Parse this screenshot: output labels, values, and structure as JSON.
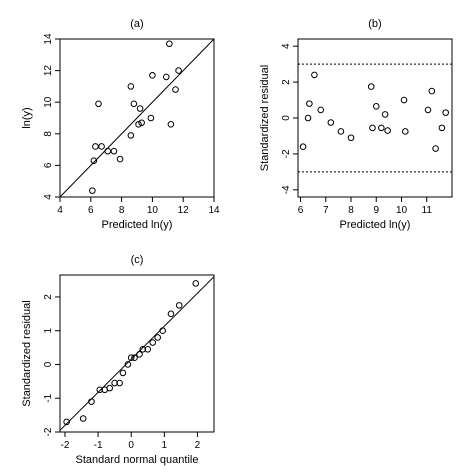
{
  "chart_data": [
    {
      "panel": "(a)",
      "type": "scatter",
      "title": "(a)",
      "xlabel": "Predicted ln(y)",
      "ylabel": "ln(y)",
      "xlim": [
        4,
        14
      ],
      "ylim": [
        4,
        14
      ],
      "xticks": [
        4,
        6,
        8,
        10,
        12,
        14
      ],
      "yticks": [
        4,
        6,
        8,
        10,
        12,
        14
      ],
      "reference_line": {
        "type": "identity",
        "from": [
          4,
          4
        ],
        "to": [
          14,
          14
        ]
      },
      "points": [
        {
          "x": 6.1,
          "y": 4.4
        },
        {
          "x": 6.2,
          "y": 6.3
        },
        {
          "x": 6.3,
          "y": 7.2
        },
        {
          "x": 6.5,
          "y": 9.9
        },
        {
          "x": 6.7,
          "y": 7.2
        },
        {
          "x": 7.1,
          "y": 6.9
        },
        {
          "x": 7.5,
          "y": 6.9
        },
        {
          "x": 7.9,
          "y": 6.4
        },
        {
          "x": 8.6,
          "y": 7.9
        },
        {
          "x": 8.6,
          "y": 11.0
        },
        {
          "x": 8.8,
          "y": 9.9
        },
        {
          "x": 9.1,
          "y": 8.6
        },
        {
          "x": 9.2,
          "y": 9.6
        },
        {
          "x": 9.3,
          "y": 8.7
        },
        {
          "x": 9.9,
          "y": 9.0
        },
        {
          "x": 10.0,
          "y": 11.7
        },
        {
          "x": 10.9,
          "y": 11.6
        },
        {
          "x": 11.1,
          "y": 13.7
        },
        {
          "x": 11.2,
          "y": 8.6
        },
        {
          "x": 11.5,
          "y": 10.8
        },
        {
          "x": 11.7,
          "y": 12.0
        }
      ]
    },
    {
      "panel": "(b)",
      "type": "scatter",
      "title": "(b)",
      "xlabel": "Predicted ln(y)",
      "ylabel": "Standardized residual",
      "xlim": [
        5.9,
        12.0
      ],
      "ylim": [
        -4.4,
        4.4
      ],
      "xticks": [
        6,
        7,
        8,
        9,
        10,
        11
      ],
      "yticks": [
        -4,
        -2,
        0,
        2,
        4
      ],
      "reference_lines": [
        {
          "y": 3,
          "style": "dotted"
        },
        {
          "y": -3,
          "style": "dotted"
        }
      ],
      "points": [
        {
          "x": 6.1,
          "y": -1.6
        },
        {
          "x": 6.3,
          "y": 0.0
        },
        {
          "x": 6.35,
          "y": 0.8
        },
        {
          "x": 6.55,
          "y": 2.4
        },
        {
          "x": 6.8,
          "y": 0.45
        },
        {
          "x": 7.2,
          "y": -0.25
        },
        {
          "x": 7.6,
          "y": -0.75
        },
        {
          "x": 8.0,
          "y": -1.1
        },
        {
          "x": 8.8,
          "y": 1.75
        },
        {
          "x": 8.85,
          "y": -0.55
        },
        {
          "x": 9.0,
          "y": 0.65
        },
        {
          "x": 9.2,
          "y": -0.55
        },
        {
          "x": 9.35,
          "y": 0.2
        },
        {
          "x": 9.45,
          "y": -0.7
        },
        {
          "x": 10.1,
          "y": 1.0
        },
        {
          "x": 10.15,
          "y": -0.75
        },
        {
          "x": 11.05,
          "y": 0.45
        },
        {
          "x": 11.2,
          "y": 1.5
        },
        {
          "x": 11.35,
          "y": -1.7
        },
        {
          "x": 11.6,
          "y": -0.55
        },
        {
          "x": 11.75,
          "y": 0.3
        }
      ]
    },
    {
      "panel": "(c)",
      "type": "scatter",
      "title": "(c)",
      "xlabel": "Standard normal quantile",
      "ylabel": "Standardized residual",
      "xlim": [
        -2.15,
        2.5
      ],
      "ylim": [
        -2.0,
        2.65
      ],
      "xticks": [
        -2,
        -1,
        0,
        1,
        2
      ],
      "yticks": [
        -2,
        -1,
        0,
        1,
        2
      ],
      "reference_line": {
        "type": "qq",
        "from": [
          -2.15,
          -1.95
        ],
        "to": [
          2.5,
          2.6
        ]
      },
      "points": [
        {
          "x": -1.95,
          "y": -1.7
        },
        {
          "x": -1.45,
          "y": -1.6
        },
        {
          "x": -1.2,
          "y": -1.1
        },
        {
          "x": -0.95,
          "y": -0.75
        },
        {
          "x": -0.8,
          "y": -0.75
        },
        {
          "x": -0.65,
          "y": -0.7
        },
        {
          "x": -0.5,
          "y": -0.55
        },
        {
          "x": -0.35,
          "y": -0.55
        },
        {
          "x": -0.25,
          "y": -0.25
        },
        {
          "x": -0.1,
          "y": 0.0
        },
        {
          "x": 0.0,
          "y": 0.2
        },
        {
          "x": 0.1,
          "y": 0.2
        },
        {
          "x": 0.25,
          "y": 0.3
        },
        {
          "x": 0.35,
          "y": 0.45
        },
        {
          "x": 0.5,
          "y": 0.45
        },
        {
          "x": 0.65,
          "y": 0.65
        },
        {
          "x": 0.8,
          "y": 0.8
        },
        {
          "x": 0.95,
          "y": 1.0
        },
        {
          "x": 1.2,
          "y": 1.5
        },
        {
          "x": 1.45,
          "y": 1.75
        },
        {
          "x": 1.95,
          "y": 2.4
        }
      ]
    }
  ]
}
